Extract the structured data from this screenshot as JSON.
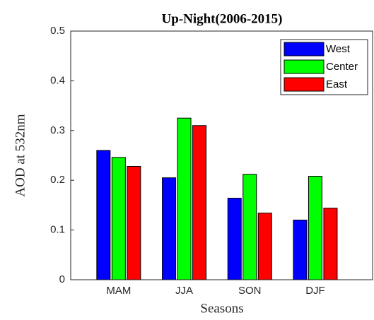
{
  "chart_data": {
    "type": "bar",
    "title": "Up-Night(2006-2015)",
    "xlabel": "Seasons",
    "ylabel": "AOD at 532nm",
    "categories": [
      "MAM",
      "JJA",
      "SON",
      "DJF"
    ],
    "series": [
      {
        "name": "West",
        "color": "#0000ff",
        "values": [
          0.26,
          0.205,
          0.164,
          0.12
        ]
      },
      {
        "name": "Center",
        "color": "#00ff00",
        "values": [
          0.246,
          0.325,
          0.212,
          0.208
        ]
      },
      {
        "name": "East",
        "color": "#ff0000",
        "values": [
          0.228,
          0.31,
          0.134,
          0.144
        ]
      }
    ],
    "ylim": [
      0,
      0.5
    ],
    "yticks": [
      0,
      0.1,
      0.2,
      0.3,
      0.4,
      0.5
    ],
    "grid": false,
    "legend": "top-right"
  }
}
